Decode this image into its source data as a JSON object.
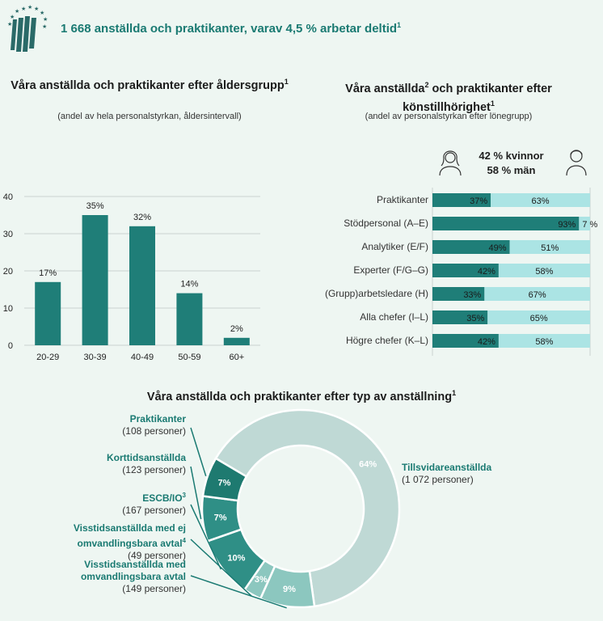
{
  "header": {
    "title": "1 668 anställda och praktikanter, varav 4,5 % arbetar deltid",
    "title_sup": "1"
  },
  "colors": {
    "dark_teal": "#1f7e78",
    "light_teal": "#abe4e4",
    "donut_dark": "#1e7a70",
    "donut_mid": "#2f8f86",
    "donut_soft": "#8cc7bf",
    "donut_large": "#bfd9d5"
  },
  "icons": [
    "eu-logo-icon",
    "woman-icon",
    "man-icon"
  ],
  "age_section": {
    "title": "Våra anställda och praktikanter efter åldersgrupp",
    "title_sup": "1",
    "subtitle": "(andel av hela personalstyrkan, åldersintervall)"
  },
  "gender_section": {
    "title_line1": "Våra anställda",
    "title_sup1": "2",
    "title_line1b": " och praktikanter efter",
    "title_line2": "könstillhörighet",
    "title_sup2": "1",
    "subtitle": "(andel av personalstyrkan efter lönegrupp)",
    "women_summary": "42 % kvinnor",
    "men_summary": "58 % män"
  },
  "employment_section": {
    "title": "Våra anställda och praktikanter efter typ av anställning",
    "title_sup": "1"
  },
  "chart_data": [
    {
      "type": "bar",
      "categories": [
        "20-29",
        "30-39",
        "40-49",
        "50-59",
        "60+"
      ],
      "values": [
        17,
        35,
        32,
        14,
        2
      ],
      "data_labels": [
        "17%",
        "35%",
        "32%",
        "14%",
        "2%"
      ],
      "yticks": [
        0,
        10,
        20,
        30,
        40
      ],
      "ylim": [
        0,
        40
      ],
      "grid": true
    },
    {
      "type": "bar",
      "orientation": "horizontal",
      "stacked": true,
      "categories": [
        "Praktikanter",
        "Stödpersonal (A–E)",
        "Analytiker (E/F)",
        "Experter (F/G–G)",
        "(Grupp)arbetsledare (H)",
        "Alla chefer (I–L)",
        "Högre chefer (K–L)"
      ],
      "series": [
        {
          "values": [
            37,
            93,
            49,
            42,
            33,
            35,
            42
          ],
          "labels": [
            "37%",
            "93%",
            "49%",
            "42%",
            "33%",
            "35%",
            "42%"
          ]
        },
        {
          "values": [
            63,
            7,
            51,
            58,
            67,
            65,
            58
          ],
          "labels": [
            "63%",
            "7 %",
            "51%",
            "58%",
            "67%",
            "65%",
            "58%"
          ]
        }
      ],
      "xlim": [
        0,
        100
      ]
    },
    {
      "type": "pie",
      "donut": true,
      "slices": [
        {
          "name": "Tillsvidareanställda",
          "detail": "(1 072 personer)",
          "value": 1072,
          "label": "64%"
        },
        {
          "name": "Visstidsanställda med omvandlingsbara avtal",
          "detail": "(149 personer)",
          "value": 149,
          "label": "9%"
        },
        {
          "name": "Visstidsanställda med ej omvandlingsbara avtal",
          "sup": "4",
          "detail": "(49 personer)",
          "value": 49,
          "label": "3%"
        },
        {
          "name": "ESCB/IO",
          "sup": "3",
          "detail": "(167 personer)",
          "value": 167,
          "label": "10%"
        },
        {
          "name": "Korttidsanställda",
          "detail": "(123 personer)",
          "value": 123,
          "label": "7%"
        },
        {
          "name": "Praktikanter",
          "detail": "(108 personer)",
          "value": 108,
          "label": "7%"
        }
      ]
    }
  ]
}
